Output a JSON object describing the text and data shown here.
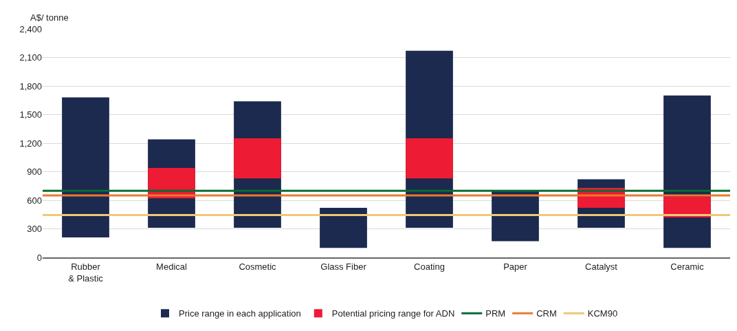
{
  "chart_data": {
    "type": "bar",
    "ylabel": "A$/ tonne",
    "categories": [
      "Rubber\n& Plastic",
      "Medical",
      "Cosmetic",
      "Glass Fiber",
      "Coating",
      "Paper",
      "Catalyst",
      "Ceramic"
    ],
    "series": [
      {
        "name": "Price range in each application",
        "color": "#1b2a4e",
        "base": [
          210,
          310,
          310,
          100,
          310,
          170,
          310,
          100
        ],
        "values": [
          1470,
          930,
          1330,
          420,
          1860,
          530,
          510,
          1600
        ]
      },
      {
        "name": "Potential pricing range for ADN",
        "color": "#ed1b34",
        "base": [
          null,
          620,
          830,
          null,
          830,
          null,
          520,
          420
        ],
        "values": [
          null,
          320,
          420,
          null,
          420,
          null,
          210,
          220
        ]
      }
    ],
    "ylim": [
      0,
      2400
    ],
    "yticks": [
      0,
      {
        "value": 300,
        "label": "300"
      },
      {
        "value": 600,
        "label": "600"
      },
      {
        "value": 900,
        "label": "900"
      },
      {
        "value": 1200,
        "label": "1,200"
      },
      {
        "value": 1500,
        "label": "1,500"
      },
      {
        "value": 1800,
        "label": "1,800"
      },
      {
        "value": 2100,
        "label": "2,100"
      },
      {
        "value": 2400,
        "label": "2,400"
      }
    ],
    "ref_lines": [
      {
        "axis": "y",
        "value": 700,
        "label": "PRM",
        "color": "#0b6b35"
      },
      {
        "axis": "y",
        "value": 650,
        "label": "CRM",
        "color": "#ea7a2e"
      },
      {
        "axis": "y",
        "value": 445,
        "label": "KCM90",
        "color": "#f0c777"
      }
    ],
    "grid": "y",
    "legend": "bottom"
  }
}
